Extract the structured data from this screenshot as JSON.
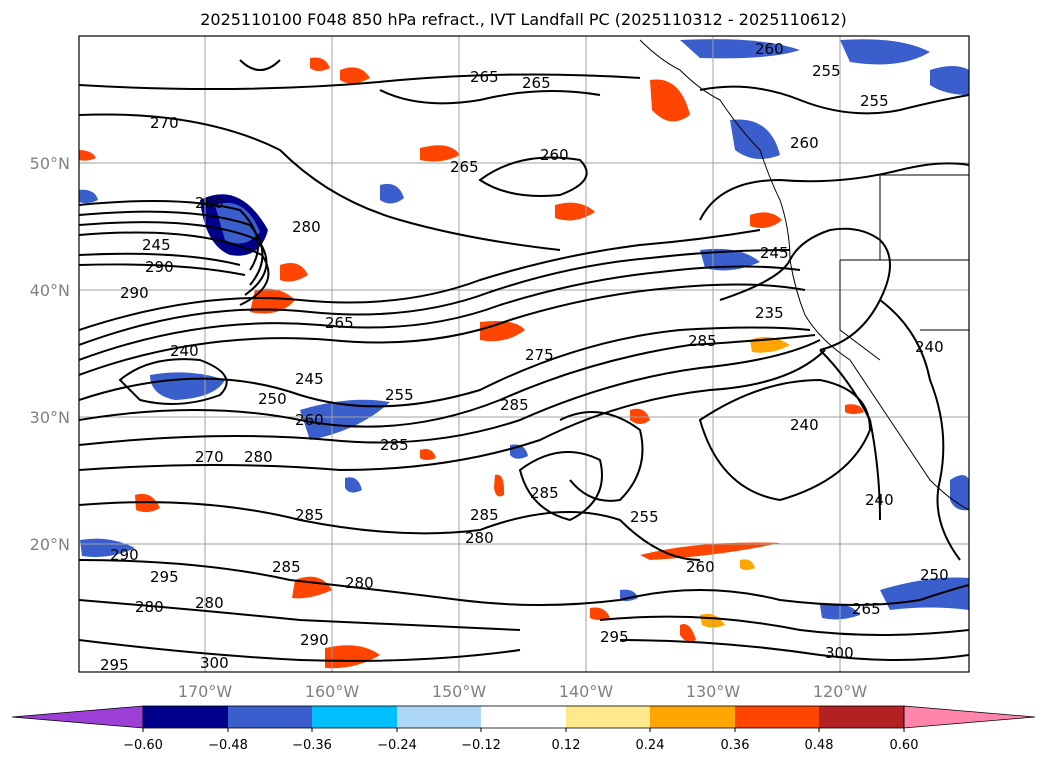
{
  "title": "2025110100 F048 850 hPa refract., IVT Landfall PC (2025110312 - 2025110612)",
  "map": {
    "lat_labels": [
      "50°N",
      "40°N",
      "30°N",
      "20°N"
    ],
    "lon_labels": [
      "170°W",
      "160°W",
      "150°W",
      "140°W",
      "130°W",
      "120°W"
    ],
    "contour_labels": [
      "265",
      "265",
      "265",
      "260",
      "260",
      "255",
      "255",
      "270",
      "260",
      "280",
      "245",
      "290",
      "290",
      "265",
      "240",
      "245",
      "250",
      "255",
      "260",
      "275",
      "285",
      "285",
      "270",
      "280",
      "285",
      "285",
      "255",
      "240",
      "240",
      "235",
      "245",
      "285",
      "280",
      "280",
      "290",
      "295",
      "280",
      "280",
      "300",
      "295",
      "300",
      "290",
      "285",
      "260",
      "265",
      "250",
      "240",
      "260",
      "295",
      "285"
    ]
  },
  "colorbar": {
    "ticks": [
      "−0.60",
      "−0.48",
      "−0.36",
      "−0.24",
      "−0.12",
      "0.12",
      "0.24",
      "0.36",
      "0.48",
      "0.60"
    ],
    "colors": [
      "#9b3fd6",
      "#00008b",
      "#3a5fcd",
      "#00bfff",
      "#add8f5",
      "#ffffff",
      "#ffe98c",
      "#ffa500",
      "#ff4500",
      "#b22222",
      "#ff85aa"
    ]
  }
}
